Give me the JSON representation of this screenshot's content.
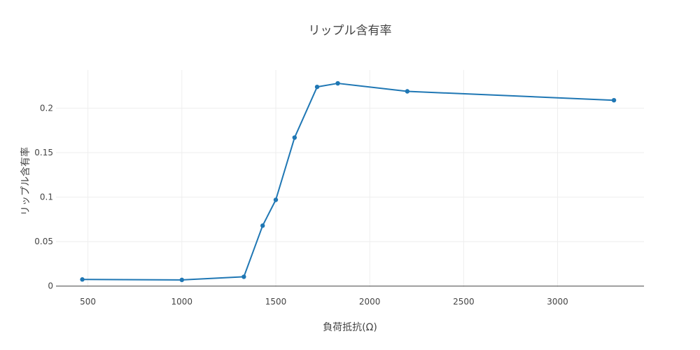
{
  "chart_data": {
    "type": "line",
    "title": "リップル含有率",
    "xlabel": "負荷抵抗(Ω)",
    "ylabel": "リップル含有率",
    "xlim": [
      330,
      3460
    ],
    "ylim": [
      -0.001,
      0.243
    ],
    "xticks": [
      500,
      1000,
      1500,
      2000,
      2500,
      3000
    ],
    "xtick_labels": [
      "500",
      "1000",
      "1500",
      "2000",
      "2500",
      "3000"
    ],
    "yticks": [
      0,
      0.05,
      0.1,
      0.15,
      0.2
    ],
    "ytick_labels": [
      "0",
      "0.05",
      "0.1",
      "0.15",
      "0.2"
    ],
    "grid": true,
    "colors": {
      "line": "#1f77b4",
      "grid": "#eeeeee",
      "zeroline": "#444444"
    },
    "series": [
      {
        "x": [
          470,
          1000,
          1330,
          1430,
          1500,
          1600,
          1720,
          1830,
          2200,
          3300
        ],
        "y": [
          0.0075,
          0.007,
          0.0105,
          0.068,
          0.097,
          0.167,
          0.224,
          0.228,
          0.219,
          0.209
        ]
      }
    ]
  }
}
